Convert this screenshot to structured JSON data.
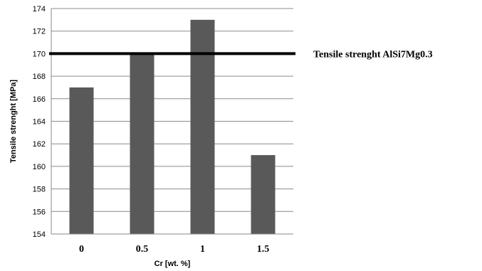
{
  "chart_data": {
    "type": "bar",
    "categories": [
      "0",
      "0.5",
      "1",
      "1.5"
    ],
    "values": [
      167,
      170,
      173,
      161
    ],
    "xlabel": "Cr [wt. %]",
    "ylabel": "Tensile strenght [MPa]",
    "ylim": [
      154,
      174
    ],
    "yticks": [
      154,
      156,
      158,
      160,
      162,
      164,
      166,
      168,
      170,
      172,
      174
    ],
    "grid": true,
    "bar_color": "#595959",
    "reference_line": {
      "value": 170,
      "label": "Tensile strenght AlSi7Mg0.3",
      "color": "#000000"
    }
  }
}
